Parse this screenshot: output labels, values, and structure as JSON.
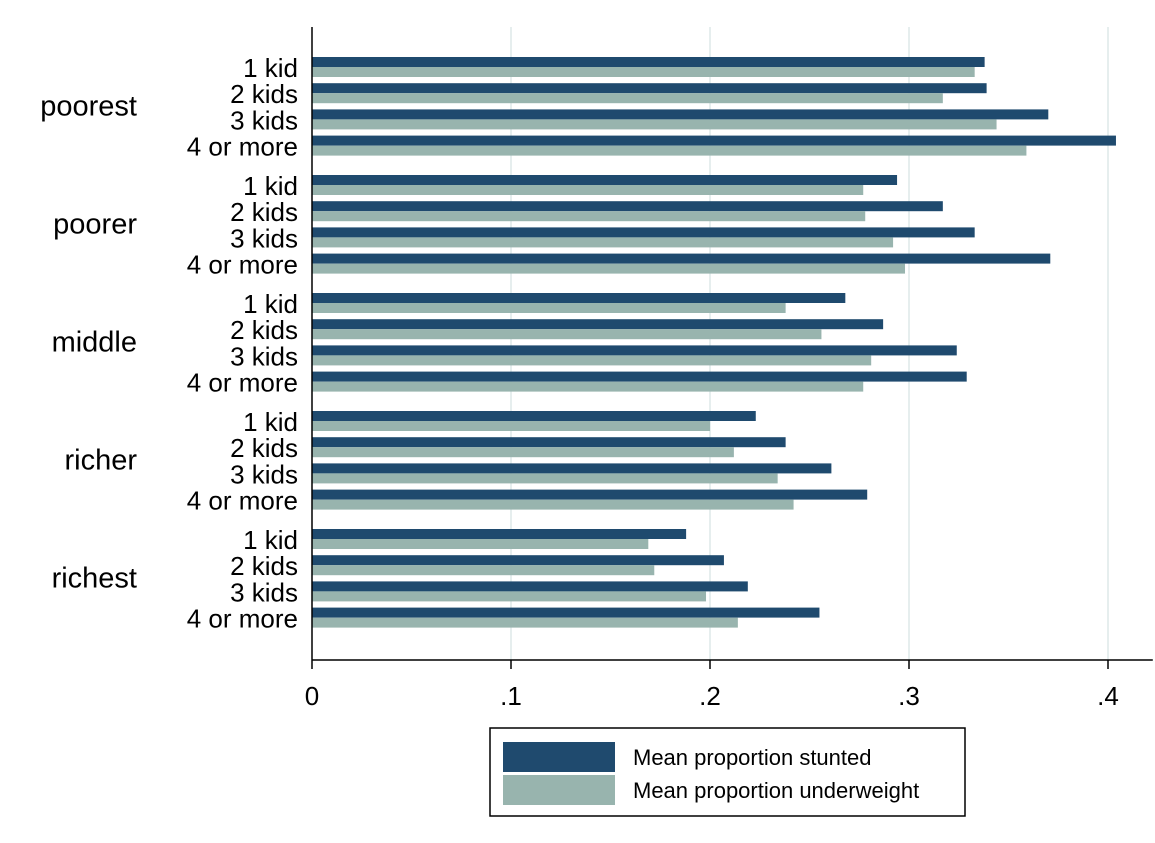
{
  "chart_data": {
    "type": "bar",
    "orientation": "horizontal",
    "groups": [
      "poorest",
      "poorer",
      "middle",
      "richer",
      "richest"
    ],
    "subcategories": [
      "1 kid",
      "2 kids",
      "3 kids",
      "4 or more"
    ],
    "series": [
      {
        "name": "Mean proportion stunted",
        "color": "#1f4a6e",
        "values": [
          [
            0.338,
            0.339,
            0.37,
            0.404
          ],
          [
            0.294,
            0.317,
            0.333,
            0.371
          ],
          [
            0.268,
            0.287,
            0.324,
            0.329
          ],
          [
            0.223,
            0.238,
            0.261,
            0.279
          ],
          [
            0.188,
            0.207,
            0.219,
            0.255
          ]
        ]
      },
      {
        "name": "Mean proportion underweight",
        "color": "#98b4ae",
        "values": [
          [
            0.333,
            0.317,
            0.344,
            0.359
          ],
          [
            0.277,
            0.278,
            0.292,
            0.298
          ],
          [
            0.238,
            0.256,
            0.281,
            0.277
          ],
          [
            0.2,
            0.212,
            0.234,
            0.242
          ],
          [
            0.169,
            0.172,
            0.198,
            0.214
          ]
        ]
      }
    ],
    "xlim": [
      0,
      0.42
    ],
    "xticks": [
      0,
      0.1,
      0.2,
      0.3,
      0.4
    ],
    "xtick_labels": [
      "0",
      ".1",
      ".2",
      ".3",
      ".4"
    ],
    "grid": true,
    "legend_position": "bottom",
    "title": "",
    "xlabel": "",
    "ylabel": ""
  }
}
